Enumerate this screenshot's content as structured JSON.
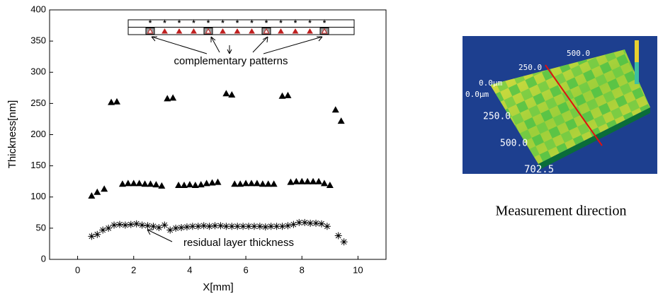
{
  "chart_data": {
    "type": "scatter",
    "xlabel": "X[mm]",
    "ylabel": "Thickness[nm]",
    "xlim": [
      -1,
      11
    ],
    "xticks": [
      0,
      2,
      4,
      6,
      8,
      10
    ],
    "ylim": [
      0,
      400
    ],
    "yticks": [
      0,
      50,
      100,
      150,
      200,
      250,
      300,
      350,
      400
    ],
    "series": [
      {
        "marker": "triangle",
        "color": "#000000",
        "x": [
          1.2,
          1.4,
          3.2,
          3.4,
          5.3,
          5.5,
          7.3,
          7.5,
          9.2,
          9.4
        ],
        "values": [
          252,
          253,
          258,
          259,
          266,
          264,
          262,
          263,
          240,
          222
        ]
      },
      {
        "marker": "triangle",
        "color": "#000000",
        "x": [
          0.5,
          0.7,
          0.95,
          1.6,
          1.8,
          2.0,
          2.2,
          2.4,
          2.6,
          2.8,
          3.0,
          3.6,
          3.8,
          4.0,
          4.2,
          4.4,
          4.6,
          4.8,
          5.0,
          5.6,
          5.8,
          6.0,
          6.2,
          6.4,
          6.6,
          6.8,
          7.0,
          7.6,
          7.8,
          8.0,
          8.2,
          8.4,
          8.6,
          8.8,
          9.0
        ],
        "values": [
          102,
          108,
          113,
          121,
          122,
          122,
          122,
          121,
          121,
          120,
          118,
          119,
          119,
          120,
          119,
          120,
          122,
          123,
          124,
          121,
          121,
          122,
          122,
          122,
          121,
          121,
          121,
          124,
          125,
          125,
          125,
          125,
          125,
          122,
          119
        ]
      },
      {
        "marker": "asterisk",
        "color": "#000000",
        "x": [
          0.5,
          0.7,
          0.9,
          1.1,
          1.3,
          1.5,
          1.7,
          1.9,
          2.1,
          2.3,
          2.5,
          2.7,
          2.9,
          3.1,
          3.3,
          3.5,
          3.7,
          3.9,
          4.1,
          4.3,
          4.5,
          4.7,
          4.9,
          5.1,
          5.3,
          5.5,
          5.7,
          5.9,
          6.1,
          6.3,
          6.5,
          6.7,
          6.9,
          7.1,
          7.3,
          7.5,
          7.7,
          7.9,
          8.1,
          8.3,
          8.5,
          8.7,
          8.9,
          9.3,
          9.5
        ],
        "values": [
          37,
          40,
          47,
          50,
          55,
          56,
          55,
          56,
          57,
          55,
          54,
          53,
          51,
          55,
          47,
          50,
          51,
          52,
          53,
          53,
          54,
          53,
          54,
          54,
          53,
          53,
          53,
          53,
          53,
          53,
          53,
          52,
          53,
          53,
          53,
          54,
          56,
          59,
          59,
          58,
          58,
          57,
          53,
          38,
          28
        ]
      }
    ],
    "annotations": [
      "complementary patterns",
      "residual layer thickness"
    ]
  },
  "image": {
    "labels": [
      "500.0",
      "250.0",
      "0.0μm",
      "0.0μm",
      "250.0",
      "500.0",
      "702.5"
    ],
    "caption": "Measurement direction"
  }
}
